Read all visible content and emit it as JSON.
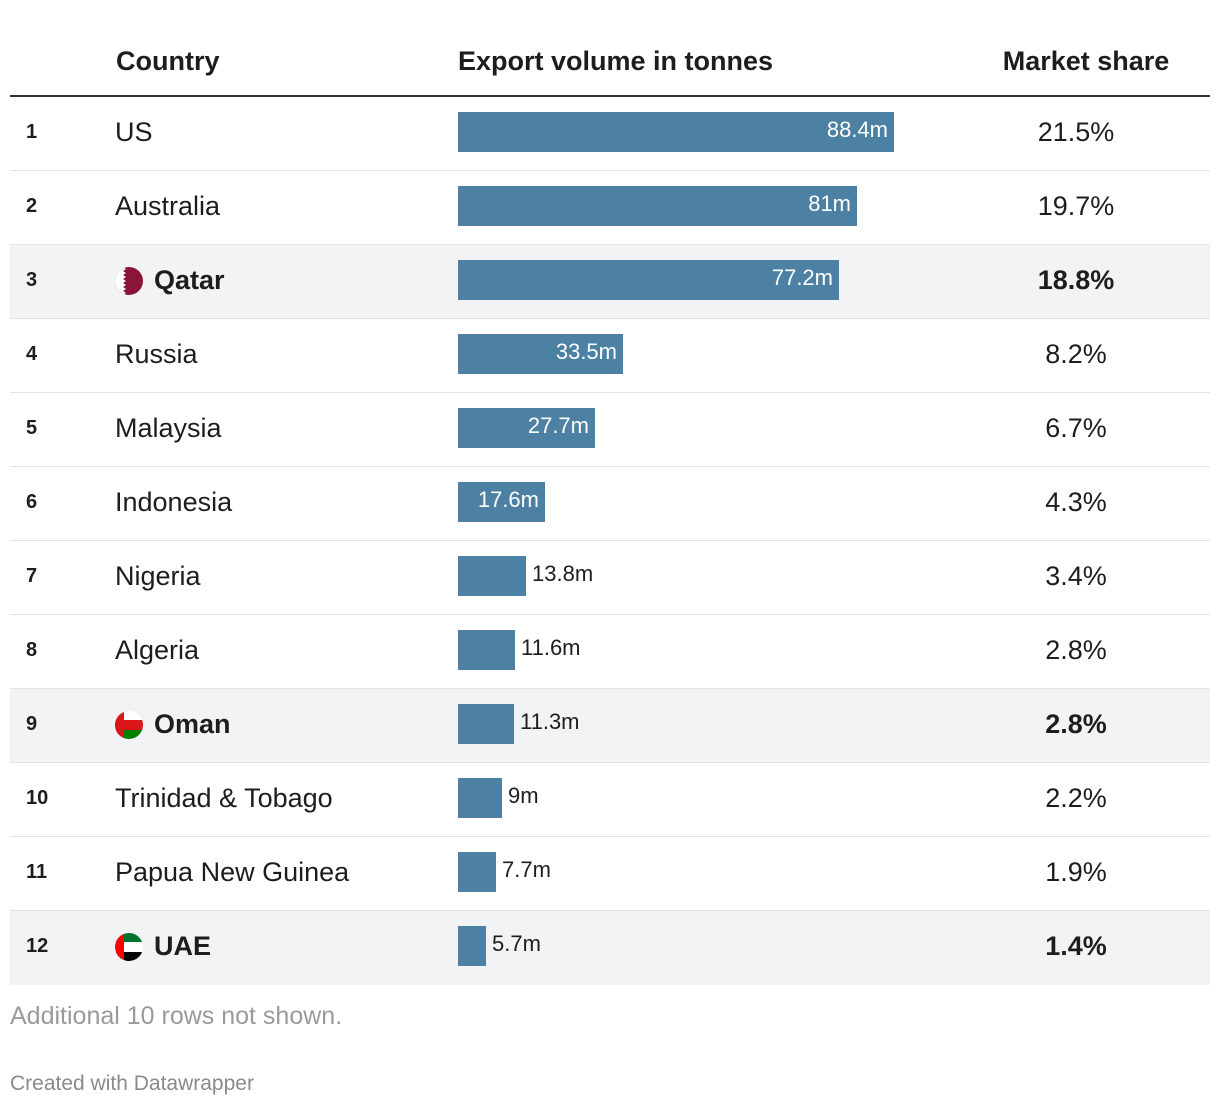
{
  "header": {
    "country": "Country",
    "export": "Export volume in tonnes",
    "share": "Market share"
  },
  "chart_data": {
    "type": "table",
    "title": "",
    "columns": [
      "",
      "Country",
      "Export volume in tonnes",
      "Market share"
    ],
    "bar_max": 100,
    "rows": [
      {
        "rank": "1",
        "country": "US",
        "value": 88.4,
        "label": "88.4m",
        "share": "21.5%",
        "highlight": false,
        "flag": ""
      },
      {
        "rank": "2",
        "country": "Australia",
        "value": 81,
        "label": "81m",
        "share": "19.7%",
        "highlight": false,
        "flag": ""
      },
      {
        "rank": "3",
        "country": "Qatar",
        "value": 77.2,
        "label": "77.2m",
        "share": "18.8%",
        "highlight": true,
        "flag": "qatar-flag-icon"
      },
      {
        "rank": "4",
        "country": "Russia",
        "value": 33.5,
        "label": "33.5m",
        "share": "8.2%",
        "highlight": false,
        "flag": ""
      },
      {
        "rank": "5",
        "country": "Malaysia",
        "value": 27.7,
        "label": "27.7m",
        "share": "6.7%",
        "highlight": false,
        "flag": ""
      },
      {
        "rank": "6",
        "country": "Indonesia",
        "value": 17.6,
        "label": "17.6m",
        "share": "4.3%",
        "highlight": false,
        "flag": ""
      },
      {
        "rank": "7",
        "country": "Nigeria",
        "value": 13.8,
        "label": "13.8m",
        "share": "3.4%",
        "highlight": false,
        "flag": ""
      },
      {
        "rank": "8",
        "country": "Algeria",
        "value": 11.6,
        "label": "11.6m",
        "share": "2.8%",
        "highlight": false,
        "flag": ""
      },
      {
        "rank": "9",
        "country": "Oman",
        "value": 11.3,
        "label": "11.3m",
        "share": "2.8%",
        "highlight": true,
        "flag": "oman-flag-icon"
      },
      {
        "rank": "10",
        "country": "Trinidad & Tobago",
        "value": 9,
        "label": "9m",
        "share": "2.2%",
        "highlight": false,
        "flag": ""
      },
      {
        "rank": "11",
        "country": "Papua New Guinea",
        "value": 7.7,
        "label": "7.7m",
        "share": "1.9%",
        "highlight": false,
        "flag": ""
      },
      {
        "rank": "12",
        "country": "UAE",
        "value": 5.7,
        "label": "5.7m",
        "share": "1.4%",
        "highlight": true,
        "flag": "uae-flag-icon"
      }
    ]
  },
  "colors": {
    "bar": "#4c81a4",
    "highlight_row": "#f2f3f4"
  },
  "footer": {
    "note": "Additional 10 rows not shown.",
    "credit": "Created with Datawrapper"
  }
}
